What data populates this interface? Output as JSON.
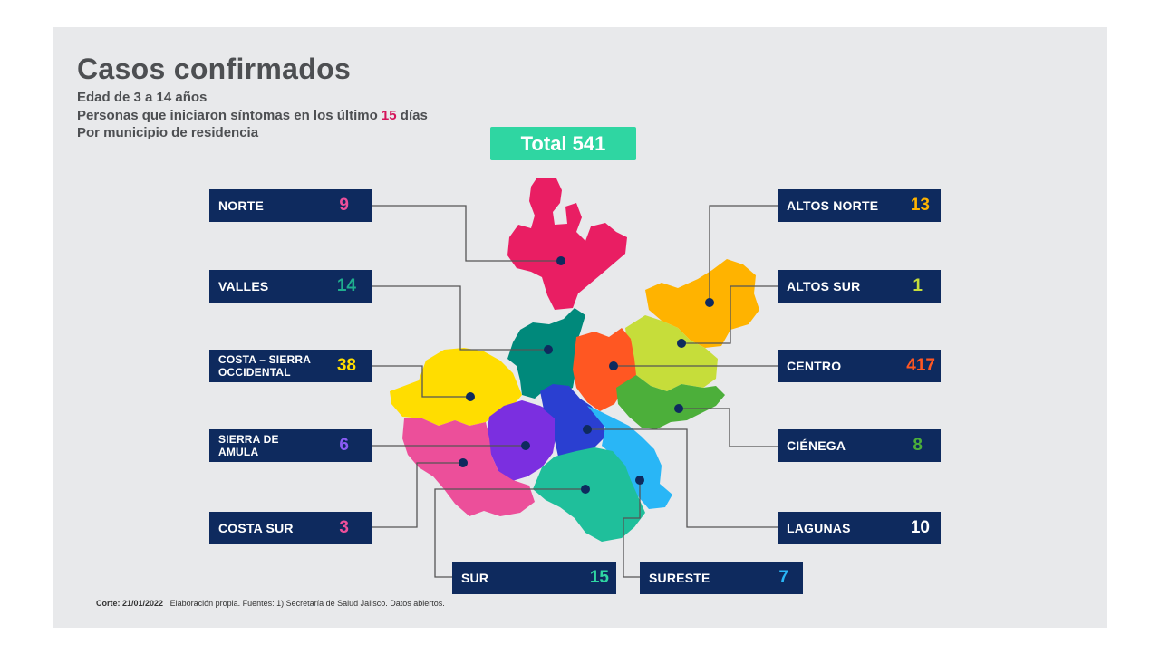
{
  "title": "Casos confirmados",
  "subtitle_lines": {
    "line1": "Edad de 3 a 14 años",
    "line2_pre": "Personas que iniciaron síntomas en los último",
    "line2_num": "15",
    "line2_post": "días",
    "line3": "Por municipio de residencia"
  },
  "total_label": "Total 541",
  "regions": [
    {
      "name": "NORTE",
      "value": "9",
      "color": "#e91e63"
    },
    {
      "name": "VALLES",
      "value": "14",
      "color": "#00897b"
    },
    {
      "name": "COSTA – SIERRA OCCIDENTAL",
      "line1": "COSTA – SIERRA",
      "line2": "OCCIDENTAL",
      "value": "38",
      "color": "#ffdd00"
    },
    {
      "name": "SIERRA DE AMULA",
      "line1": "SIERRA DE",
      "line2": "AMULA",
      "value": "6",
      "color": "#7b2fe0"
    },
    {
      "name": "COSTA SUR",
      "value": "3",
      "color": "#ec4f9a"
    },
    {
      "name": "SUR",
      "value": "15",
      "color": "#1fbf9b"
    },
    {
      "name": "SURESTE",
      "value": "7",
      "color": "#29b6f6"
    },
    {
      "name": "ALTOS NORTE",
      "value": "13",
      "color": "#ffb300"
    },
    {
      "name": "ALTOS SUR",
      "value": "1",
      "color": "#c6dd3a"
    },
    {
      "name": "CENTRO",
      "value": "417",
      "color": "#ff5722"
    },
    {
      "name": "CIÉNEGA",
      "value": "8",
      "color": "#4caf3a"
    },
    {
      "name": "LAGUNAS",
      "value": "10",
      "color": "#ffffff"
    }
  ],
  "colors": {
    "blue_region": "#2a3fd1",
    "box_bg": "#0e2a5e",
    "total_bg": "#2fd6a2"
  },
  "footer": {
    "bold": "Corte: 21/01/2022",
    "text": "Elaboración propia.  Fuentes:  1) Secretaría de Salud Jalisco.  Datos abiertos."
  }
}
